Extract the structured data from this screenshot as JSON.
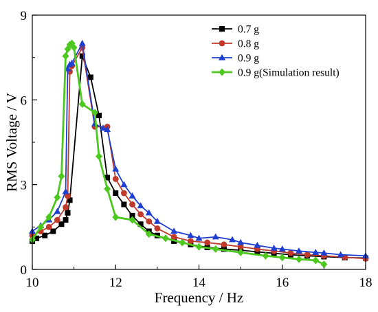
{
  "chart_data": {
    "type": "line",
    "title": "",
    "xlabel": "Frequency / Hz",
    "ylabel": "RMS Voltage / V",
    "xlim": [
      10,
      18
    ],
    "ylim": [
      0,
      9
    ],
    "xticks": [
      "10",
      "12",
      "14",
      "16",
      "18"
    ],
    "yticks": [
      "0",
      "3",
      "6",
      "9"
    ],
    "grid": false,
    "legend_position": "top-right",
    "series": [
      {
        "name": "0.7 g",
        "color": "#000000",
        "marker": "square",
        "x": [
          10.0,
          10.1,
          10.3,
          10.5,
          10.7,
          10.8,
          10.85,
          10.9,
          11.2,
          11.4,
          11.6,
          11.8,
          12.0,
          12.2,
          12.4,
          12.6,
          12.8,
          13.0,
          13.4,
          13.8,
          14.2,
          14.6,
          15.0,
          15.4,
          15.8,
          16.2,
          16.6,
          17.0,
          17.5,
          18.0
        ],
        "y": [
          1.0,
          1.1,
          1.2,
          1.35,
          1.6,
          1.75,
          2.0,
          2.45,
          7.55,
          6.8,
          5.45,
          3.25,
          2.7,
          2.3,
          1.9,
          1.6,
          1.35,
          1.2,
          1.0,
          0.88,
          0.78,
          0.72,
          0.68,
          0.62,
          0.57,
          0.52,
          0.48,
          0.45,
          0.42,
          0.4
        ]
      },
      {
        "name": "0.8 g",
        "color": "#c0392b",
        "marker": "circle",
        "x": [
          10.0,
          10.2,
          10.4,
          10.6,
          10.8,
          10.85,
          10.9,
          10.95,
          11.2,
          11.5,
          11.8,
          12.0,
          12.2,
          12.4,
          12.6,
          12.8,
          13.0,
          13.4,
          13.8,
          14.2,
          14.6,
          15.0,
          15.4,
          15.8,
          16.2,
          16.6,
          17.0,
          17.5,
          18.0
        ],
        "y": [
          1.2,
          1.35,
          1.5,
          1.75,
          2.2,
          2.6,
          7.0,
          7.2,
          7.85,
          5.05,
          5.05,
          3.2,
          2.7,
          2.3,
          1.95,
          1.7,
          1.45,
          1.15,
          1.0,
          0.95,
          0.88,
          0.8,
          0.72,
          0.65,
          0.58,
          0.52,
          0.48,
          0.43,
          0.38
        ]
      },
      {
        "name": "0.9 g",
        "color": "#1f3fd1",
        "marker": "triangle",
        "x": [
          10.0,
          10.2,
          10.4,
          10.6,
          10.8,
          10.85,
          10.9,
          10.95,
          11.2,
          11.5,
          11.7,
          11.8,
          12.0,
          12.2,
          12.4,
          12.6,
          12.8,
          13.0,
          13.4,
          13.8,
          14.0,
          14.4,
          14.8,
          15.0,
          15.4,
          15.8,
          16.0,
          16.4,
          16.8,
          17.0,
          17.4,
          18.0
        ],
        "y": [
          1.35,
          1.55,
          1.75,
          2.05,
          2.75,
          7.1,
          7.25,
          7.3,
          8.0,
          5.15,
          5.0,
          4.95,
          3.55,
          3.0,
          2.6,
          2.25,
          2.0,
          1.7,
          1.35,
          1.2,
          1.1,
          1.15,
          1.05,
          0.95,
          0.85,
          0.75,
          0.72,
          0.65,
          0.6,
          0.58,
          0.52,
          0.48
        ]
      },
      {
        "name": "0.9 g(Simulation result)",
        "color": "#4cc81e",
        "marker": "diamond",
        "x": [
          10.0,
          10.2,
          10.4,
          10.6,
          10.7,
          10.8,
          10.85,
          10.9,
          10.95,
          11.0,
          11.2,
          11.5,
          11.6,
          11.8,
          12.0,
          12.4,
          12.8,
          13.2,
          13.6,
          14.0,
          14.4,
          15.0,
          15.6,
          16.0,
          16.4,
          16.8,
          17.0
        ],
        "y": [
          1.05,
          1.5,
          1.85,
          2.55,
          3.3,
          7.55,
          7.8,
          7.95,
          8.0,
          7.85,
          5.85,
          5.55,
          4.0,
          2.85,
          1.85,
          1.75,
          1.25,
          1.1,
          0.95,
          0.8,
          0.72,
          0.6,
          0.48,
          0.42,
          0.36,
          0.32,
          0.18
        ]
      }
    ]
  }
}
